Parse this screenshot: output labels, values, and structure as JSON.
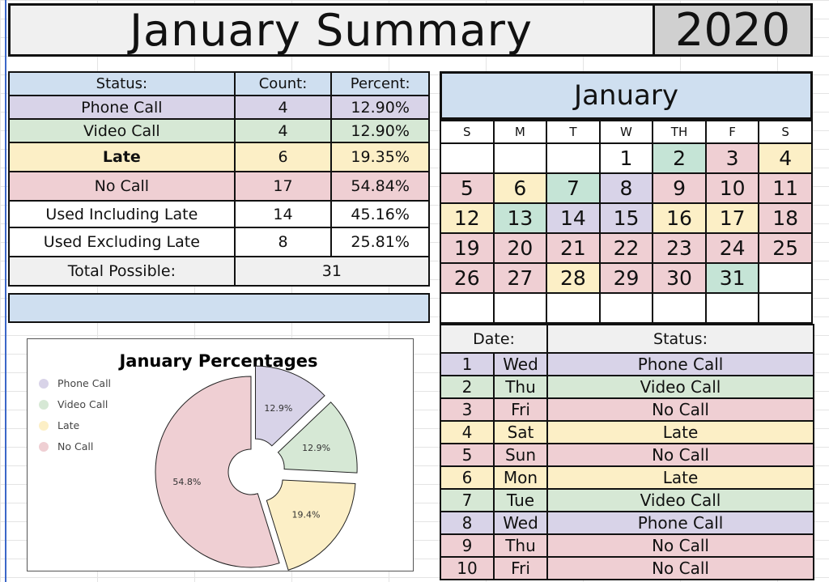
{
  "header": {
    "title": "January Summary",
    "year": "2020"
  },
  "colors": {
    "phone": "#d8d3e8",
    "video": "#d6e8d5",
    "late": "#fcefc6",
    "nocall": "#efcfd3",
    "blue": "#cfdff0",
    "grey": "#f0f0f0",
    "teal": "#c5e4d6"
  },
  "status_table": {
    "headers": [
      "Status:",
      "Count:",
      "Percent:"
    ],
    "rows": [
      {
        "label": "Phone Call",
        "count": "4",
        "percent": "12.90%",
        "color": "#d8d3e8"
      },
      {
        "label": "Video Call",
        "count": "4",
        "percent": "12.90%",
        "color": "#d6e8d5"
      },
      {
        "label": "Late",
        "count": "6",
        "percent": "19.35%",
        "color": "#fcefc6"
      },
      {
        "label": "No Call",
        "count": "17",
        "percent": "54.84%",
        "color": "#efcfd3"
      },
      {
        "label": "Used Including Late",
        "count": "14",
        "percent": "45.16%",
        "color": "#ffffff"
      },
      {
        "label": "Used Excluding Late",
        "count": "8",
        "percent": "25.81%",
        "color": "#ffffff"
      }
    ],
    "total_label": "Total Possible:",
    "total_value": "31"
  },
  "chart_data": {
    "type": "pie",
    "title": "January Percentages",
    "categories": [
      "Phone Call",
      "Video Call",
      "Late",
      "No Call"
    ],
    "values": [
      12.9,
      12.9,
      19.4,
      54.8
    ],
    "labels": [
      "12.9%",
      "12.9%",
      "19.4%",
      "54.8%"
    ],
    "colors": [
      "#d8d3e8",
      "#d6e8d5",
      "#fcefc6",
      "#efcfd3"
    ],
    "legend": "top-left",
    "donut": true
  },
  "calendar": {
    "month": "January",
    "dows": [
      "S",
      "M",
      "T",
      "W",
      "TH",
      "F",
      "S"
    ],
    "weeks": [
      [
        {
          "d": "",
          "c": "#ffffff"
        },
        {
          "d": "",
          "c": "#ffffff"
        },
        {
          "d": "",
          "c": "#ffffff"
        },
        {
          "d": "1",
          "c": "#ffffff"
        },
        {
          "d": "2",
          "c": "#c5e4d6"
        },
        {
          "d": "3",
          "c": "#efcfd3"
        },
        {
          "d": "4",
          "c": "#fcefc6"
        }
      ],
      [
        {
          "d": "5",
          "c": "#efcfd3"
        },
        {
          "d": "6",
          "c": "#fcefc6"
        },
        {
          "d": "7",
          "c": "#c5e4d6"
        },
        {
          "d": "8",
          "c": "#d8d3e8"
        },
        {
          "d": "9",
          "c": "#efcfd3"
        },
        {
          "d": "10",
          "c": "#efcfd3"
        },
        {
          "d": "11",
          "c": "#efcfd3"
        }
      ],
      [
        {
          "d": "12",
          "c": "#fcefc6"
        },
        {
          "d": "13",
          "c": "#c5e4d6"
        },
        {
          "d": "14",
          "c": "#d8d3e8"
        },
        {
          "d": "15",
          "c": "#d8d3e8"
        },
        {
          "d": "16",
          "c": "#fcefc6"
        },
        {
          "d": "17",
          "c": "#fcefc6"
        },
        {
          "d": "18",
          "c": "#efcfd3"
        }
      ],
      [
        {
          "d": "19",
          "c": "#efcfd3"
        },
        {
          "d": "20",
          "c": "#efcfd3"
        },
        {
          "d": "21",
          "c": "#efcfd3"
        },
        {
          "d": "22",
          "c": "#efcfd3"
        },
        {
          "d": "23",
          "c": "#efcfd3"
        },
        {
          "d": "24",
          "c": "#efcfd3"
        },
        {
          "d": "25",
          "c": "#efcfd3"
        }
      ],
      [
        {
          "d": "26",
          "c": "#efcfd3"
        },
        {
          "d": "27",
          "c": "#efcfd3"
        },
        {
          "d": "28",
          "c": "#fcefc6"
        },
        {
          "d": "29",
          "c": "#efcfd3"
        },
        {
          "d": "30",
          "c": "#efcfd3"
        },
        {
          "d": "31",
          "c": "#c5e4d6"
        },
        {
          "d": "",
          "c": "#ffffff"
        }
      ],
      [
        {
          "d": "",
          "c": "#ffffff"
        },
        {
          "d": "",
          "c": "#ffffff"
        },
        {
          "d": "",
          "c": "#ffffff"
        },
        {
          "d": "",
          "c": "#ffffff"
        },
        {
          "d": "",
          "c": "#ffffff"
        },
        {
          "d": "",
          "c": "#ffffff"
        },
        {
          "d": "",
          "c": "#ffffff"
        }
      ]
    ]
  },
  "date_list": {
    "headers": [
      "Date:",
      "Status:"
    ],
    "rows": [
      {
        "n": "1",
        "day": "Wed",
        "status": "Phone Call",
        "color": "#d8d3e8"
      },
      {
        "n": "2",
        "day": "Thu",
        "status": "Video Call",
        "color": "#d6e8d5"
      },
      {
        "n": "3",
        "day": "Fri",
        "status": "No Call",
        "color": "#efcfd3"
      },
      {
        "n": "4",
        "day": "Sat",
        "status": "Late",
        "color": "#fcefc6"
      },
      {
        "n": "5",
        "day": "Sun",
        "status": "No Call",
        "color": "#efcfd3"
      },
      {
        "n": "6",
        "day": "Mon",
        "status": "Late",
        "color": "#fcefc6"
      },
      {
        "n": "7",
        "day": "Tue",
        "status": "Video Call",
        "color": "#d6e8d5"
      },
      {
        "n": "8",
        "day": "Wed",
        "status": "Phone Call",
        "color": "#d8d3e8"
      },
      {
        "n": "9",
        "day": "Thu",
        "status": "No Call",
        "color": "#efcfd3"
      },
      {
        "n": "10",
        "day": "Fri",
        "status": "No Call",
        "color": "#efcfd3"
      }
    ]
  }
}
